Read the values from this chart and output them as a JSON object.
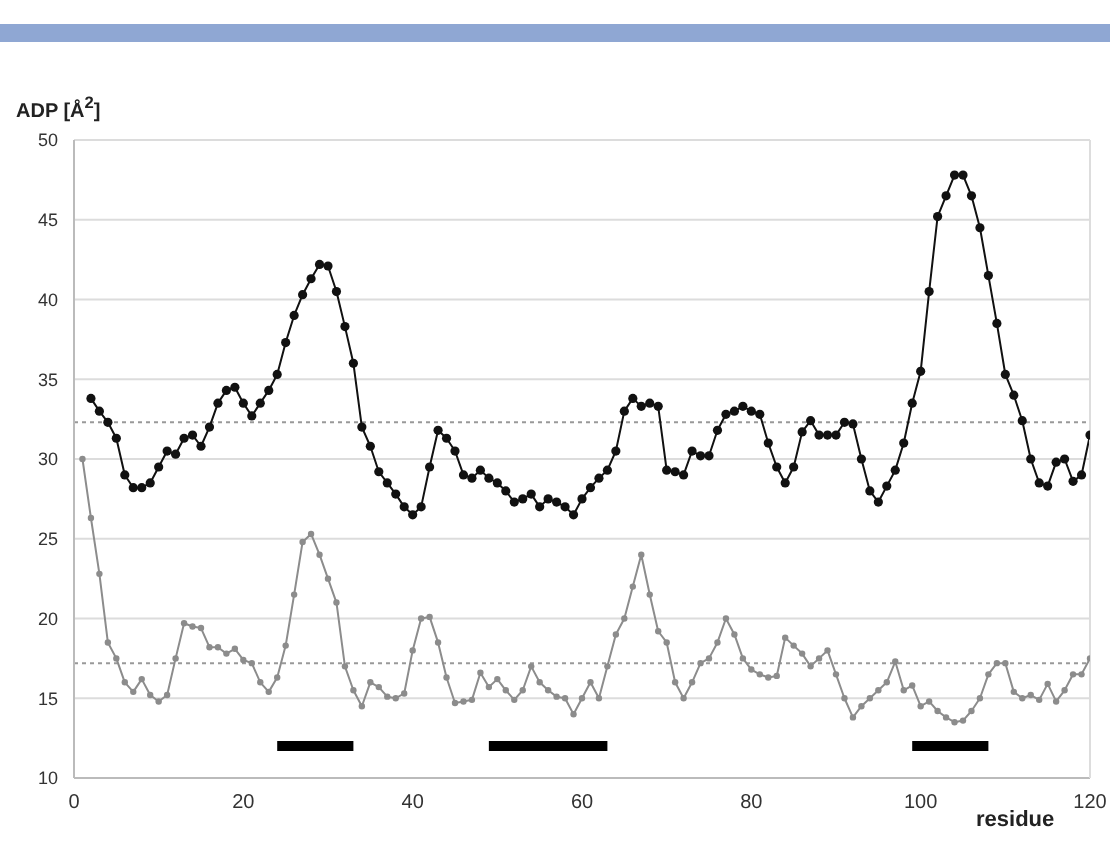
{
  "chart_data": {
    "type": "line",
    "ylabel": "ADP [Å$^{2}$]",
    "xlabel": "residue",
    "xlim": [
      0,
      120
    ],
    "xticks": [
      0,
      20,
      40,
      60,
      80,
      100,
      120
    ],
    "ylim": [
      10,
      50
    ],
    "yticks": [
      10,
      15,
      20,
      25,
      30,
      35,
      40,
      45,
      50
    ],
    "grid": "y",
    "line_style": "solid",
    "series": [
      {
        "color": "#111111",
        "marker": "circle",
        "x": [
          2,
          3,
          4,
          5,
          6,
          7,
          8,
          9,
          10,
          11,
          12,
          13,
          14,
          15,
          16,
          17,
          18,
          19,
          20,
          21,
          22,
          23,
          24,
          25,
          26,
          27,
          28,
          29,
          30,
          31,
          32,
          33,
          34,
          35,
          36,
          37,
          38,
          39,
          40,
          41,
          42,
          43,
          44,
          45,
          46,
          47,
          48,
          49,
          50,
          51,
          52,
          53,
          54,
          55,
          56,
          57,
          58,
          59,
          60,
          61,
          62,
          63,
          64,
          65,
          66,
          67,
          68,
          69,
          70,
          71,
          72,
          73,
          74,
          75,
          76,
          77,
          78,
          79,
          80,
          81,
          82,
          83,
          84,
          85,
          86,
          87,
          88,
          89,
          90,
          91,
          92,
          93,
          94,
          95,
          96,
          97,
          98,
          99,
          100,
          101,
          102,
          103,
          104,
          105,
          106,
          107,
          108,
          109,
          110,
          111,
          112,
          113,
          114,
          115,
          116,
          117,
          118,
          119,
          120
        ],
        "values": [
          33.8,
          33,
          32.3,
          31.3,
          29,
          28.2,
          28.2,
          28.5,
          29.5,
          30.5,
          30.3,
          31.3,
          31.5,
          30.8,
          32,
          33.5,
          34.3,
          34.5,
          33.5,
          32.7,
          33.5,
          34.3,
          35.3,
          37.3,
          39,
          40.3,
          41.3,
          42.2,
          42.1,
          40.5,
          38.3,
          36,
          32,
          30.8,
          29.2,
          28.5,
          27.8,
          27,
          26.5,
          27,
          29.5,
          31.8,
          31.3,
          30.5,
          29,
          28.8,
          29.3,
          28.8,
          28.5,
          28,
          27.3,
          27.5,
          27.8,
          27,
          27.5,
          27.3,
          27,
          26.5,
          27.5,
          28.2,
          28.8,
          29.3,
          30.5,
          33,
          33.8,
          33.3,
          33.5,
          33.3,
          29.3,
          29.2,
          29,
          30.5,
          30.2,
          30.2,
          31.8,
          32.8,
          33,
          33.3,
          33,
          32.8,
          31,
          29.5,
          28.5,
          29.5,
          31.7,
          32.4,
          31.5,
          31.5,
          31.5,
          32.3,
          32.2,
          30,
          28,
          27.3,
          28.3,
          29.3,
          31,
          33.5,
          35.5,
          40.5,
          45.2,
          46.5,
          47.8,
          47.8,
          46.5,
          44.5,
          41.5,
          38.5,
          35.3,
          34,
          32.4,
          30,
          28.5,
          28.3,
          29.8,
          30,
          28.6,
          29,
          31.5
        ]
      },
      {
        "color": "#8c8c8c",
        "marker": "circle",
        "x": [
          1,
          2,
          3,
          4,
          5,
          6,
          7,
          8,
          9,
          10,
          11,
          12,
          13,
          14,
          15,
          16,
          17,
          18,
          19,
          20,
          21,
          22,
          23,
          24,
          25,
          26,
          27,
          28,
          29,
          30,
          31,
          32,
          33,
          34,
          35,
          36,
          37,
          38,
          39,
          40,
          41,
          42,
          43,
          44,
          45,
          46,
          47,
          48,
          49,
          50,
          51,
          52,
          53,
          54,
          55,
          56,
          57,
          58,
          59,
          60,
          61,
          62,
          63,
          64,
          65,
          66,
          67,
          68,
          69,
          70,
          71,
          72,
          73,
          74,
          75,
          76,
          77,
          78,
          79,
          80,
          81,
          82,
          83,
          84,
          85,
          86,
          87,
          88,
          89,
          90,
          91,
          92,
          93,
          94,
          95,
          96,
          97,
          98,
          99,
          100,
          101,
          102,
          103,
          104,
          105,
          106,
          107,
          108,
          109,
          110,
          111,
          112,
          113,
          114,
          115,
          116,
          117,
          118,
          119,
          120
        ],
        "values": [
          30,
          26.3,
          22.8,
          18.5,
          17.5,
          16,
          15.4,
          16.2,
          15.2,
          14.8,
          15.2,
          17.5,
          19.7,
          19.5,
          19.4,
          18.2,
          18.2,
          17.8,
          18.1,
          17.4,
          17.2,
          16,
          15.4,
          16.3,
          18.3,
          21.5,
          24.8,
          25.3,
          24,
          22.5,
          21,
          17,
          15.5,
          14.5,
          16,
          15.7,
          15.1,
          15,
          15.3,
          18,
          20,
          20.1,
          18.5,
          16.3,
          14.7,
          14.8,
          14.9,
          16.6,
          15.7,
          16.2,
          15.5,
          14.9,
          15.5,
          17,
          16,
          15.5,
          15.1,
          15,
          14,
          15,
          16,
          15,
          17,
          19,
          20,
          22,
          24,
          21.5,
          19.2,
          18.5,
          16,
          15,
          16,
          17.2,
          17.5,
          18.5,
          20,
          19,
          17.5,
          16.8,
          16.5,
          16.3,
          16.4,
          18.8,
          18.3,
          17.8,
          17,
          17.5,
          18,
          16.5,
          15,
          13.8,
          14.5,
          15,
          15.5,
          16,
          17.3,
          15.5,
          15.8,
          14.5,
          14.8,
          14.2,
          13.8,
          13.5,
          13.6,
          14.2,
          15,
          16.5,
          17.2,
          17.2,
          15.4,
          15,
          15.2,
          14.9,
          15.9,
          14.8,
          15.5,
          16.5,
          16.5,
          17.5
        ]
      },
      {
        "color": "#000000",
        "marker": "none",
        "x": [
          24,
          33
        ],
        "values": [
          12,
          12
        ]
      },
      {
        "color": "#000000",
        "marker": "none",
        "x": [
          49,
          63
        ],
        "values": [
          12,
          12
        ]
      },
      {
        "color": "#000000",
        "marker": "none",
        "x": [
          99,
          108
        ],
        "values": [
          12,
          12
        ]
      }
    ],
    "ref_lines": [
      {
        "axis": "y",
        "value": 32.3,
        "color": "#999999",
        "line_style": "dotted"
      },
      {
        "axis": "y",
        "value": 17.2,
        "color": "#999999",
        "line_style": "dotted"
      }
    ]
  }
}
